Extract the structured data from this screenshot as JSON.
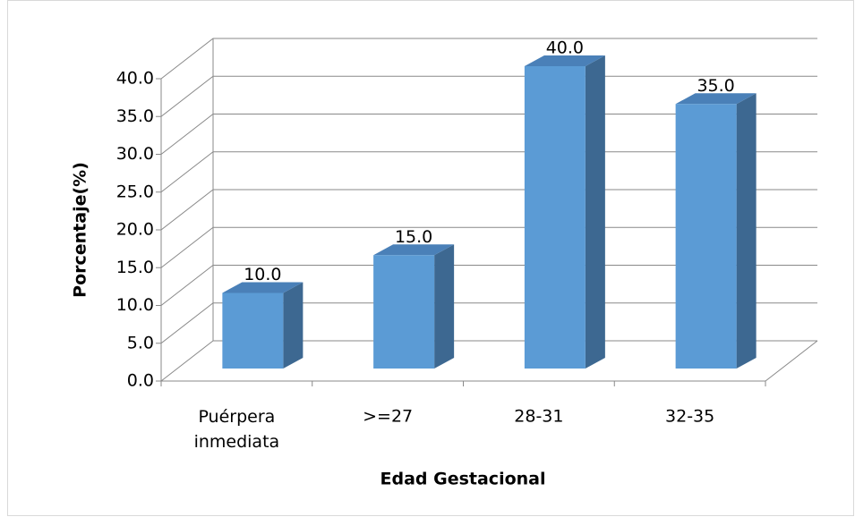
{
  "chart_data": {
    "type": "bar3d",
    "categories": [
      "Puérpera inmediata",
      ">=27",
      "28-31",
      "32-35"
    ],
    "values": [
      10,
      15,
      40,
      35
    ],
    "value_labels": [
      "10.0",
      "15.0",
      "40.0",
      "35.0"
    ],
    "color": "#5b9bd5",
    "x_label": "Edad Gestacional",
    "y_label": "Porcentaje(%)",
    "ylim": [
      0,
      40
    ],
    "yticks": [
      {
        "value": 0,
        "label": "0.0"
      },
      {
        "value": 5,
        "label": "5.0"
      },
      {
        "value": 10,
        "label": "10.0"
      },
      {
        "value": 15,
        "label": "15.0"
      },
      {
        "value": 20,
        "label": "20.0"
      },
      {
        "value": 25,
        "label": "25.0"
      },
      {
        "value": 30,
        "label": "30.0"
      },
      {
        "value": 35,
        "label": "35.0"
      },
      {
        "value": 40,
        "label": "40.0"
      }
    ],
    "grid": true
  }
}
